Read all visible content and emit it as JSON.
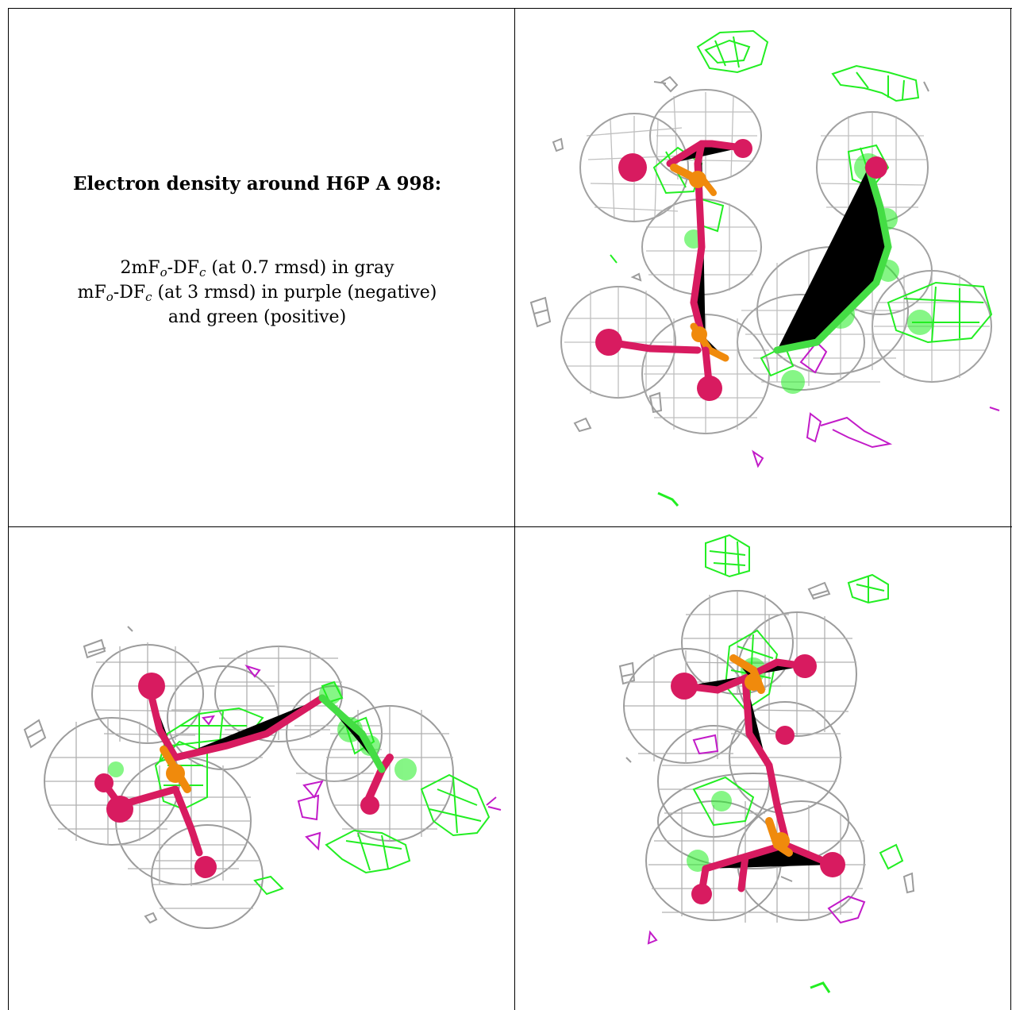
{
  "caption": {
    "title": "Electron density around H6P A 998:",
    "lines": [
      [
        {
          "t": "2mF"
        },
        {
          "sub": "o"
        },
        {
          "t": "-DF"
        },
        {
          "sub": "c"
        },
        {
          "t": " (at 0.7 rmsd) in gray"
        }
      ],
      [
        {
          "t": "mF"
        },
        {
          "sub": "o"
        },
        {
          "t": "-DF"
        },
        {
          "sub": "c"
        },
        {
          "t": " (at 3 rmsd) in purple (negative)"
        }
      ],
      [
        {
          "t": "and green (positive)"
        }
      ]
    ]
  },
  "colors": {
    "gray_mesh": "#9c9c9c",
    "green_mesh": "#22ee22",
    "purple_mesh": "#c21bc8",
    "atom_oxygen": "#d81b60",
    "atom_phosphorus": "#f08a0c",
    "atom_carbon": "#44dd44",
    "grid_border": "#000000"
  },
  "views": [
    "view-top-right",
    "view-bottom-left",
    "view-bottom-right"
  ]
}
